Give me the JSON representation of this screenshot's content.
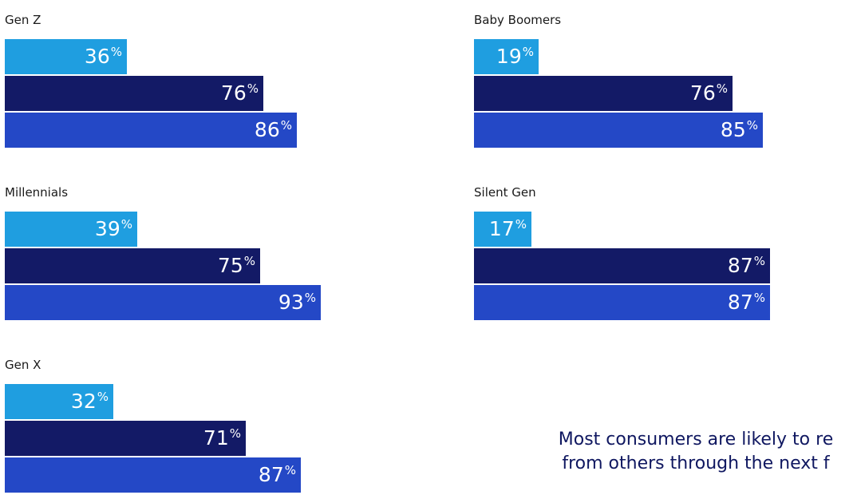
{
  "chart_data": {
    "type": "bar",
    "orientation": "horizontal",
    "unit": "%",
    "groups": [
      {
        "name": "Gen Z",
        "values": [
          36,
          76,
          86
        ]
      },
      {
        "name": "Millennials",
        "values": [
          39,
          75,
          93
        ]
      },
      {
        "name": "Gen X",
        "values": [
          32,
          71,
          87
        ]
      },
      {
        "name": "Baby Boomers",
        "values": [
          19,
          76,
          85
        ]
      },
      {
        "name": "Silent Gen",
        "values": [
          17,
          87,
          87
        ]
      }
    ],
    "colors": [
      "#1f9ee0",
      "#131a66",
      "#2448c6"
    ],
    "legend": "none"
  },
  "note": {
    "line1": "Most consumers are likely to re",
    "line2": "from others through the next f"
  }
}
